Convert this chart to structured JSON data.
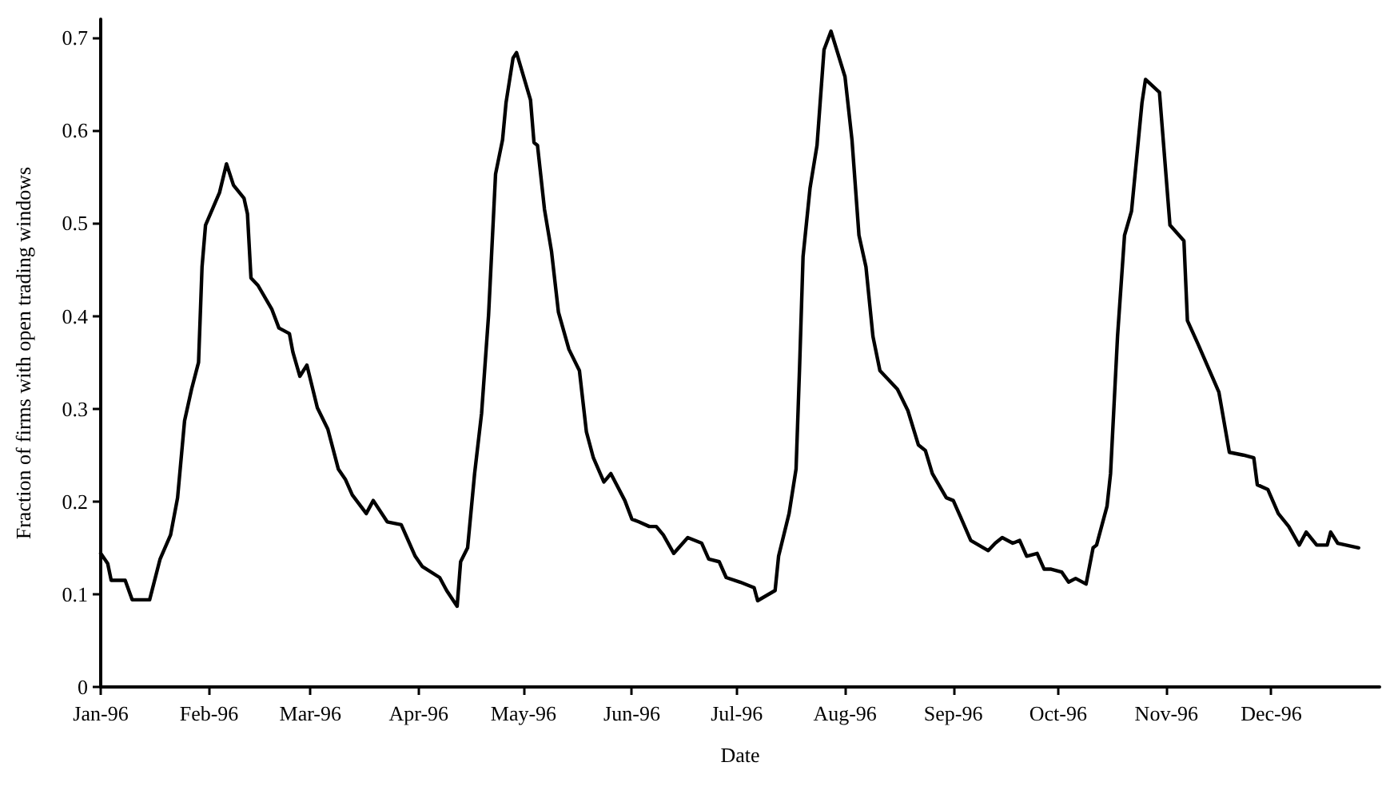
{
  "chart_data": {
    "type": "line",
    "xlabel": "Date",
    "ylabel": "Fraction of firms with open trading windows",
    "x": [
      "1996-01-01",
      "1996-01-03",
      "1996-01-04",
      "1996-01-08",
      "1996-01-10",
      "1996-01-15",
      "1996-01-18",
      "1996-01-21",
      "1996-01-23",
      "1996-01-25",
      "1996-01-27",
      "1996-01-29",
      "1996-01-30",
      "1996-01-31",
      "1996-02-04",
      "1996-02-06",
      "1996-02-08",
      "1996-02-11",
      "1996-02-12",
      "1996-02-13",
      "1996-02-15",
      "1996-02-19",
      "1996-02-21",
      "1996-02-24",
      "1996-02-25",
      "1996-02-27",
      "1996-02-29",
      "1996-03-03",
      "1996-03-06",
      "1996-03-09",
      "1996-03-11",
      "1996-03-13",
      "1996-03-17",
      "1996-03-19",
      "1996-03-23",
      "1996-03-27",
      "1996-03-31",
      "1996-04-02",
      "1996-04-07",
      "1996-04-09",
      "1996-04-12",
      "1996-04-13",
      "1996-04-15",
      "1996-04-17",
      "1996-04-19",
      "1996-04-21",
      "1996-04-23",
      "1996-04-25",
      "1996-04-26",
      "1996-04-28",
      "1996-04-29",
      "1996-05-03",
      "1996-05-04",
      "1996-05-05",
      "1996-05-07",
      "1996-05-09",
      "1996-05-11",
      "1996-05-14",
      "1996-05-17",
      "1996-05-19",
      "1996-05-21",
      "1996-05-24",
      "1996-05-26",
      "1996-05-30",
      "1996-06-01",
      "1996-06-03",
      "1996-06-06",
      "1996-06-08",
      "1996-06-10",
      "1996-06-13",
      "1996-06-17",
      "1996-06-21",
      "1996-06-23",
      "1996-06-26",
      "1996-06-28",
      "1996-07-02",
      "1996-07-06",
      "1996-07-07",
      "1996-07-12",
      "1996-07-13",
      "1996-07-16",
      "1996-07-18",
      "1996-07-19",
      "1996-07-20",
      "1996-07-22",
      "1996-07-24",
      "1996-07-26",
      "1996-07-28",
      "1996-08-01",
      "1996-08-03",
      "1996-08-05",
      "1996-08-07",
      "1996-08-09",
      "1996-08-11",
      "1996-08-16",
      "1996-08-19",
      "1996-08-22",
      "1996-08-24",
      "1996-08-26",
      "1996-08-30",
      "1996-09-01",
      "1996-09-03",
      "1996-09-06",
      "1996-09-11",
      "1996-09-13",
      "1996-09-15",
      "1996-09-18",
      "1996-09-20",
      "1996-09-22",
      "1996-09-25",
      "1996-09-27",
      "1996-09-29",
      "1996-10-02",
      "1996-10-04",
      "1996-10-06",
      "1996-10-09",
      "1996-10-11",
      "1996-10-12",
      "1996-10-15",
      "1996-10-16",
      "1996-10-18",
      "1996-10-20",
      "1996-10-22",
      "1996-10-25",
      "1996-10-26",
      "1996-10-30",
      "1996-11-02",
      "1996-11-06",
      "1996-11-07",
      "1996-11-10",
      "1996-11-13",
      "1996-11-16",
      "1996-11-19",
      "1996-11-23",
      "1996-11-26",
      "1996-11-27",
      "1996-11-30",
      "1996-12-03",
      "1996-12-06",
      "1996-12-09",
      "1996-12-11",
      "1996-12-14",
      "1996-12-17",
      "1996-12-18",
      "1996-12-20",
      "1996-12-26"
    ],
    "series": [
      {
        "color": "#000000",
        "values": [
          0.144,
          0.133,
          0.115,
          0.115,
          0.094,
          0.094,
          0.138,
          0.164,
          0.204,
          0.287,
          0.321,
          0.35,
          0.453,
          0.498,
          0.533,
          0.564,
          0.541,
          0.527,
          0.51,
          0.441,
          0.433,
          0.407,
          0.387,
          0.381,
          0.361,
          0.335,
          0.347,
          0.301,
          0.278,
          0.235,
          0.224,
          0.207,
          0.187,
          0.201,
          0.178,
          0.175,
          0.141,
          0.13,
          0.118,
          0.104,
          0.087,
          0.135,
          0.15,
          0.23,
          0.295,
          0.401,
          0.553,
          0.59,
          0.63,
          0.678,
          0.684,
          0.633,
          0.587,
          0.584,
          0.515,
          0.47,
          0.404,
          0.364,
          0.341,
          0.275,
          0.247,
          0.221,
          0.23,
          0.201,
          0.181,
          0.178,
          0.173,
          0.173,
          0.164,
          0.144,
          0.161,
          0.155,
          0.138,
          0.135,
          0.118,
          0.113,
          0.107,
          0.093,
          0.104,
          0.141,
          0.187,
          0.235,
          0.344,
          0.464,
          0.538,
          0.584,
          0.687,
          0.707,
          0.658,
          0.59,
          0.487,
          0.453,
          0.378,
          0.341,
          0.321,
          0.298,
          0.261,
          0.255,
          0.23,
          0.204,
          0.201,
          0.184,
          0.158,
          0.147,
          0.155,
          0.161,
          0.155,
          0.158,
          0.141,
          0.144,
          0.127,
          0.127,
          0.124,
          0.113,
          0.117,
          0.111,
          0.15,
          0.153,
          0.195,
          0.23,
          0.378,
          0.487,
          0.513,
          0.63,
          0.655,
          0.641,
          0.498,
          0.481,
          0.395,
          0.37,
          0.344,
          0.318,
          0.253,
          0.25,
          0.247,
          0.218,
          0.213,
          0.187,
          0.173,
          0.153,
          0.167,
          0.153,
          0.153,
          0.167,
          0.155,
          0.15
        ]
      }
    ],
    "xlim": [
      "1996-01-01",
      "1997-01-01"
    ],
    "xticks": [
      {
        "value": "1996-01-01",
        "label": "Jan-96"
      },
      {
        "value": "1996-02-01",
        "label": "Feb-96"
      },
      {
        "value": "1996-03-01",
        "label": "Mar-96"
      },
      {
        "value": "1996-04-01",
        "label": "Apr-96"
      },
      {
        "value": "1996-05-01",
        "label": "May-96"
      },
      {
        "value": "1996-06-01",
        "label": "Jun-96"
      },
      {
        "value": "1996-07-01",
        "label": "Jul-96"
      },
      {
        "value": "1996-08-01",
        "label": "Aug-96"
      },
      {
        "value": "1996-09-01",
        "label": "Sep-96"
      },
      {
        "value": "1996-10-01",
        "label": "Oct-96"
      },
      {
        "value": "1996-11-01",
        "label": "Nov-96"
      },
      {
        "value": "1996-12-01",
        "label": "Dec-96"
      }
    ],
    "ylim": [
      0,
      0.72
    ],
    "yticks": [
      0,
      0.1,
      0.2,
      0.3,
      0.4,
      0.5,
      0.6,
      0.7
    ],
    "marker": "none",
    "line_style": "solid"
  }
}
